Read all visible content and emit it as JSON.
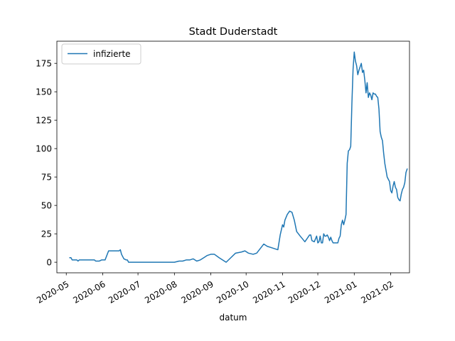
{
  "chart_data": {
    "type": "line",
    "title": "Stadt Duderstadt",
    "xlabel": "datum",
    "ylabel": "",
    "ylim": [
      -9.3,
      194.5
    ],
    "xlim": [
      "2020-04-23",
      "2021-02-17"
    ],
    "x_ticks": [
      "2020-05",
      "2020-06",
      "2020-07",
      "2020-08",
      "2020-09",
      "2020-10",
      "2020-11",
      "2020-12",
      "2021-01",
      "2021-02"
    ],
    "y_ticks": [
      0,
      25,
      50,
      75,
      100,
      125,
      150,
      175
    ],
    "grid": false,
    "legend_position": "top-left",
    "color": "#1f77b4",
    "series": [
      {
        "name": "infizierte",
        "points": [
          [
            "2020-05-04",
            4
          ],
          [
            "2020-05-05",
            4
          ],
          [
            "2020-05-06",
            2
          ],
          [
            "2020-05-10",
            2
          ],
          [
            "2020-05-11",
            1
          ],
          [
            "2020-05-12",
            2
          ],
          [
            "2020-05-25",
            2
          ],
          [
            "2020-05-26",
            1
          ],
          [
            "2020-05-29",
            1
          ],
          [
            "2020-05-31",
            2
          ],
          [
            "2020-06-03",
            2
          ],
          [
            "2020-06-06",
            10
          ],
          [
            "2020-06-15",
            10
          ],
          [
            "2020-06-16",
            11
          ],
          [
            "2020-06-17",
            7
          ],
          [
            "2020-06-19",
            3
          ],
          [
            "2020-06-21",
            2
          ],
          [
            "2020-06-22",
            2
          ],
          [
            "2020-06-23",
            0
          ],
          [
            "2020-08-01",
            0
          ],
          [
            "2020-08-05",
            1
          ],
          [
            "2020-08-08",
            1
          ],
          [
            "2020-08-11",
            2
          ],
          [
            "2020-08-14",
            2
          ],
          [
            "2020-08-17",
            3
          ],
          [
            "2020-08-20",
            1
          ],
          [
            "2020-08-23",
            2
          ],
          [
            "2020-08-26",
            4
          ],
          [
            "2020-08-29",
            6
          ],
          [
            "2020-09-01",
            7
          ],
          [
            "2020-09-04",
            7
          ],
          [
            "2020-09-08",
            4
          ],
          [
            "2020-09-14",
            0
          ],
          [
            "2020-09-18",
            4
          ],
          [
            "2020-09-22",
            8
          ],
          [
            "2020-09-27",
            9
          ],
          [
            "2020-09-30",
            10
          ],
          [
            "2020-10-03",
            8
          ],
          [
            "2020-10-07",
            7
          ],
          [
            "2020-10-10",
            8
          ],
          [
            "2020-10-13",
            12
          ],
          [
            "2020-10-16",
            16
          ],
          [
            "2020-10-19",
            14
          ],
          [
            "2020-10-22",
            13
          ],
          [
            "2020-10-25",
            12
          ],
          [
            "2020-10-28",
            11
          ],
          [
            "2020-10-30",
            24
          ],
          [
            "2020-11-01",
            33
          ],
          [
            "2020-11-02",
            31
          ],
          [
            "2020-11-03",
            37
          ],
          [
            "2020-11-05",
            42
          ],
          [
            "2020-11-07",
            45
          ],
          [
            "2020-11-09",
            44
          ],
          [
            "2020-11-11",
            37
          ],
          [
            "2020-11-13",
            27
          ],
          [
            "2020-11-16",
            23
          ],
          [
            "2020-11-20",
            18
          ],
          [
            "2020-11-22",
            21
          ],
          [
            "2020-11-24",
            24
          ],
          [
            "2020-11-25",
            24
          ],
          [
            "2020-11-26",
            19
          ],
          [
            "2020-11-28",
            18
          ],
          [
            "2020-11-30",
            23
          ],
          [
            "2020-12-01",
            17
          ],
          [
            "2020-12-02",
            18
          ],
          [
            "2020-12-03",
            23
          ],
          [
            "2020-12-04",
            17
          ],
          [
            "2020-12-05",
            17
          ],
          [
            "2020-12-06",
            25
          ],
          [
            "2020-12-07",
            23
          ],
          [
            "2020-12-08",
            23
          ],
          [
            "2020-12-09",
            24
          ],
          [
            "2020-12-10",
            22
          ],
          [
            "2020-12-11",
            19
          ],
          [
            "2020-12-12",
            22
          ],
          [
            "2020-12-13",
            19
          ],
          [
            "2020-12-14",
            17
          ],
          [
            "2020-12-18",
            17
          ],
          [
            "2020-12-19",
            21
          ],
          [
            "2020-12-20",
            23
          ],
          [
            "2020-12-21",
            33
          ],
          [
            "2020-12-22",
            37
          ],
          [
            "2020-12-23",
            33
          ],
          [
            "2020-12-24",
            37
          ],
          [
            "2020-12-25",
            42
          ],
          [
            "2020-12-26",
            87
          ],
          [
            "2020-12-27",
            98
          ],
          [
            "2020-12-28",
            99
          ],
          [
            "2020-12-29",
            102
          ],
          [
            "2020-12-30",
            140
          ],
          [
            "2020-12-31",
            170
          ],
          [
            "2021-01-01",
            185
          ],
          [
            "2021-01-02",
            177
          ],
          [
            "2021-01-03",
            173
          ],
          [
            "2021-01-04",
            165
          ],
          [
            "2021-01-05",
            169
          ],
          [
            "2021-01-06",
            172
          ],
          [
            "2021-01-07",
            175
          ],
          [
            "2021-01-08",
            167
          ],
          [
            "2021-01-09",
            169
          ],
          [
            "2021-01-10",
            160
          ],
          [
            "2021-01-11",
            149
          ],
          [
            "2021-01-12",
            158
          ],
          [
            "2021-01-13",
            145
          ],
          [
            "2021-01-14",
            149
          ],
          [
            "2021-01-15",
            147
          ],
          [
            "2021-01-16",
            143
          ],
          [
            "2021-01-17",
            149
          ],
          [
            "2021-01-18",
            148
          ],
          [
            "2021-01-19",
            148
          ],
          [
            "2021-01-20",
            146
          ],
          [
            "2021-01-21",
            145
          ],
          [
            "2021-01-22",
            135
          ],
          [
            "2021-01-23",
            115
          ],
          [
            "2021-01-24",
            110
          ],
          [
            "2021-01-25",
            107
          ],
          [
            "2021-01-26",
            96
          ],
          [
            "2021-01-27",
            87
          ],
          [
            "2021-01-28",
            81
          ],
          [
            "2021-01-29",
            75
          ],
          [
            "2021-01-30",
            73
          ],
          [
            "2021-01-31",
            71
          ],
          [
            "2021-02-01",
            63
          ],
          [
            "2021-02-02",
            61
          ],
          [
            "2021-02-03",
            67
          ],
          [
            "2021-02-04",
            71
          ],
          [
            "2021-02-05",
            66
          ],
          [
            "2021-02-06",
            64
          ],
          [
            "2021-02-07",
            57
          ],
          [
            "2021-02-08",
            55
          ],
          [
            "2021-02-09",
            54
          ],
          [
            "2021-02-10",
            60
          ],
          [
            "2021-02-11",
            64
          ],
          [
            "2021-02-12",
            66
          ],
          [
            "2021-02-13",
            70
          ],
          [
            "2021-02-14",
            79
          ],
          [
            "2021-02-15",
            82
          ]
        ]
      }
    ]
  }
}
